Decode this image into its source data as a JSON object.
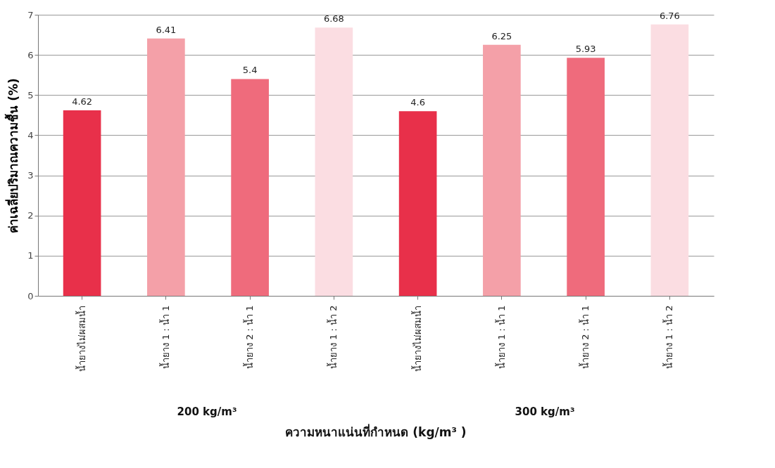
{
  "chart_data": {
    "type": "bar",
    "xlabel": "ความหนาแน่นที่กำหนด (kg/m³ )",
    "ylabel": "ค่าเฉลี่ยปริมาณความชื้น (%)",
    "categories": [
      "น้ำยางไม่ผสมน้ำ",
      "น้ำยาง 1 : น้ำ 1",
      "น้ำยาง 2 : น้ำ 1",
      "น้ำยาง 1 : น้ำ 2",
      "น้ำยางไม่ผสมน้ำ",
      "น้ำยาง 1 : น้ำ 1",
      "น้ำยาง 2 : น้ำ 1",
      "น้ำยาง 1 : น้ำ 2"
    ],
    "values": [
      4.62,
      6.41,
      5.4,
      6.68,
      4.6,
      6.25,
      5.93,
      6.76
    ],
    "colors": [
      "#e8304a",
      "#f4a0a8",
      "#ef6b7c",
      "#fbdde2",
      "#e8304a",
      "#f4a0a8",
      "#ef6b7c",
      "#fbdde2"
    ],
    "ylim": [
      0,
      7
    ],
    "yticks": [
      0,
      1,
      2,
      3,
      4,
      5,
      6,
      7
    ],
    "grid": "y",
    "data_labels": true,
    "annotations": [
      "200 kg/m³",
      "300 kg/m³"
    ]
  }
}
